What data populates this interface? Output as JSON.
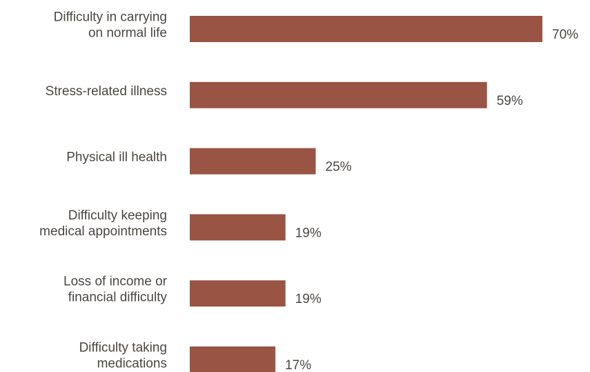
{
  "chart_data": {
    "type": "bar",
    "orientation": "horizontal",
    "categories": [
      [
        "Difficulty in carrying",
        "on normal life"
      ],
      [
        "Stress-related illness"
      ],
      [
        "Physical ill health"
      ],
      [
        "Difficulty keeping",
        "medical appointments"
      ],
      [
        "Loss of income or",
        "financial difficulty"
      ],
      [
        "Difficulty taking",
        "medications"
      ]
    ],
    "values": [
      70,
      59,
      25,
      19,
      19,
      17
    ],
    "value_labels": [
      "70%",
      "59%",
      "25%",
      "19%",
      "19%",
      "17%"
    ],
    "unit": "%",
    "xlim": [
      0,
      100
    ],
    "grid": false,
    "legend": "none"
  },
  "colors": {
    "bar": "#995444",
    "label_text": "#4a4642",
    "value_text": "#4a4642"
  }
}
